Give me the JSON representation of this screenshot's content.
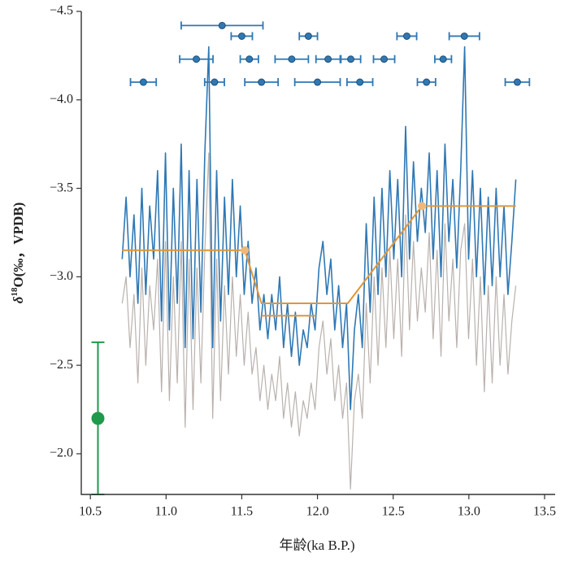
{
  "chart_data": {
    "type": "line",
    "xlabel": "年龄(ka B.P.)",
    "ylabel": {
      "symbol": "δ",
      "sup": "18",
      "rest": "O(‰，VPDB)"
    },
    "xlim": [
      10.44,
      13.57
    ],
    "ylim": [
      -4.5,
      -1.77
    ],
    "y_inverted": true,
    "xticks": [
      10.5,
      {
        "value": 11,
        "label": "11.0"
      },
      11.5,
      {
        "value": 12,
        "label": "12.0"
      },
      12.5,
      {
        "value": 13,
        "label": "13.0"
      },
      13.5
    ],
    "yticks": [
      {
        "value": -4.5,
        "label": "−4.5"
      },
      {
        "value": -4,
        "label": "−4.0"
      },
      {
        "value": -3.5,
        "label": "−3.5"
      },
      {
        "value": -3,
        "label": "−3.0"
      },
      {
        "value": -2.5,
        "label": "−2.5"
      },
      {
        "value": -2,
        "label": "−2.0"
      }
    ],
    "x": [
      10.71,
      10.736,
      10.762,
      10.788,
      10.814,
      10.84,
      10.866,
      10.892,
      10.918,
      10.944,
      10.97,
      10.996,
      11.022,
      11.048,
      11.074,
      11.1,
      11.126,
      11.152,
      11.178,
      11.204,
      11.23,
      11.256,
      11.282,
      11.308,
      11.334,
      11.36,
      11.386,
      11.412,
      11.438,
      11.464,
      11.49,
      11.516,
      11.542,
      11.568,
      11.594,
      11.62,
      11.646,
      11.672,
      11.698,
      11.724,
      11.75,
      11.776,
      11.802,
      11.828,
      11.854,
      11.88,
      11.906,
      11.932,
      11.958,
      11.984,
      12.01,
      12.036,
      12.062,
      12.088,
      12.114,
      12.14,
      12.166,
      12.192,
      12.218,
      12.244,
      12.27,
      12.296,
      12.322,
      12.348,
      12.374,
      12.4,
      12.426,
      12.452,
      12.478,
      12.504,
      12.53,
      12.556,
      12.582,
      12.608,
      12.634,
      12.66,
      12.686,
      12.712,
      12.738,
      12.764,
      12.79,
      12.816,
      12.842,
      12.868,
      12.894,
      12.92,
      12.946,
      12.972,
      12.998,
      13.024,
      13.05,
      13.076,
      13.102,
      13.128,
      13.154,
      13.18,
      13.206,
      13.232,
      13.258,
      13.284,
      13.31
    ],
    "series": [
      {
        "color": "#b9b1ad",
        "width": 1.2,
        "values": [
          -2.85,
          -3.0,
          -2.6,
          -2.9,
          -2.4,
          -3.05,
          -2.5,
          -2.95,
          -2.7,
          -3.1,
          -2.35,
          -3.2,
          -2.3,
          -3.0,
          -2.4,
          -3.2,
          -2.15,
          -3.1,
          -2.25,
          -3.05,
          -2.4,
          -3.15,
          -3.7,
          -2.2,
          -3.1,
          -2.3,
          -2.95,
          -2.45,
          -3.0,
          -2.55,
          -2.9,
          -2.5,
          -2.8,
          -2.45,
          -2.6,
          -2.3,
          -2.5,
          -2.25,
          -2.45,
          -2.3,
          -2.55,
          -2.2,
          -2.4,
          -2.15,
          -2.35,
          -2.1,
          -2.3,
          -2.2,
          -2.4,
          -2.25,
          -2.6,
          -2.75,
          -2.45,
          -2.65,
          -2.3,
          -2.5,
          -2.2,
          -2.4,
          -1.8,
          -2.3,
          -2.45,
          -2.2,
          -2.85,
          -2.4,
          -3.0,
          -2.5,
          -3.05,
          -2.6,
          -3.15,
          -2.65,
          -3.1,
          -2.55,
          -3.35,
          -2.7,
          -3.2,
          -2.75,
          -3.05,
          -2.8,
          -3.25,
          -2.65,
          -3.15,
          -2.55,
          -3.3,
          -2.75,
          -3.1,
          -2.6,
          -3.15,
          -3.3,
          -2.65,
          -3.1,
          -2.5,
          -3.0,
          -2.35,
          -2.95,
          -2.4,
          -3.0,
          -2.5,
          -2.9,
          -2.45,
          -2.75,
          -2.95
        ]
      },
      {
        "color": "#2f78b4",
        "width": 1.6,
        "values": [
          -3.1,
          -3.45,
          -3.0,
          -3.35,
          -2.85,
          -3.5,
          -2.9,
          -3.4,
          -3.1,
          -3.6,
          -2.75,
          -3.7,
          -2.7,
          -3.5,
          -2.85,
          -3.75,
          -2.6,
          -3.6,
          -2.65,
          -3.55,
          -2.8,
          -3.7,
          -4.3,
          -2.6,
          -3.6,
          -2.75,
          -3.45,
          -2.9,
          -3.55,
          -3.0,
          -3.4,
          -2.9,
          -3.2,
          -2.85,
          -3.05,
          -2.7,
          -2.9,
          -2.65,
          -2.9,
          -2.7,
          -3.0,
          -2.6,
          -2.85,
          -2.55,
          -2.8,
          -2.5,
          -2.7,
          -2.6,
          -2.85,
          -2.7,
          -3.05,
          -3.2,
          -2.9,
          -3.1,
          -2.7,
          -2.95,
          -2.6,
          -2.85,
          -2.25,
          -2.7,
          -2.9,
          -2.6,
          -3.3,
          -2.8,
          -3.45,
          -2.9,
          -3.5,
          -3.0,
          -3.6,
          -3.1,
          -3.55,
          -3.0,
          -3.85,
          -3.1,
          -3.65,
          -3.2,
          -3.5,
          -3.25,
          -3.7,
          -3.1,
          -3.6,
          -3.0,
          -3.75,
          -3.2,
          -3.55,
          -3.05,
          -3.6,
          -4.3,
          -3.1,
          -3.6,
          -3.0,
          -3.5,
          -2.9,
          -3.45,
          -2.95,
          -3.5,
          -3.0,
          -3.4,
          -2.9,
          -3.2,
          -3.55
        ]
      },
      {
        "color": "#e0963a",
        "width": 2,
        "x": [
          10.71,
          11.52,
          11.63,
          12.2,
          12.69,
          13.31
        ],
        "values": [
          -3.15,
          -3.15,
          -2.85,
          -2.85,
          -3.4,
          -3.4
        ]
      },
      {
        "color": "#e0963a",
        "width": 2,
        "x": [
          11.63,
          11.99
        ],
        "values": [
          -2.78,
          -2.78
        ]
      }
    ],
    "orange_points": {
      "color": "#f0b878",
      "x": [
        11.52,
        12.69
      ],
      "y": [
        -3.15,
        -3.4
      ]
    },
    "dates": {
      "color": "#2f78b4",
      "x": [
        11.37,
        11.5,
        11.94,
        12.59,
        12.97,
        11.2,
        11.55,
        11.83,
        12.07,
        12.22,
        12.44,
        12.83,
        10.85,
        11.32,
        11.63,
        12.0,
        12.28,
        12.72,
        13.32
      ],
      "y": [
        -4.42,
        -4.36,
        -4.36,
        -4.36,
        -4.36,
        -4.23,
        -4.23,
        -4.23,
        -4.23,
        -4.23,
        -4.23,
        -4.23,
        -4.1,
        -4.1,
        -4.1,
        -4.1,
        -4.1,
        -4.1,
        -4.1
      ],
      "xerr": [
        0.27,
        0.07,
        0.06,
        0.065,
        0.1,
        0.11,
        0.06,
        0.11,
        0.08,
        0.065,
        0.07,
        0.055,
        0.085,
        0.065,
        0.11,
        0.15,
        0.085,
        0.06,
        0.08
      ]
    },
    "error_point": {
      "color": "#1f9a4c",
      "x": 10.55,
      "y": -2.2,
      "yerr": 0.43
    }
  }
}
